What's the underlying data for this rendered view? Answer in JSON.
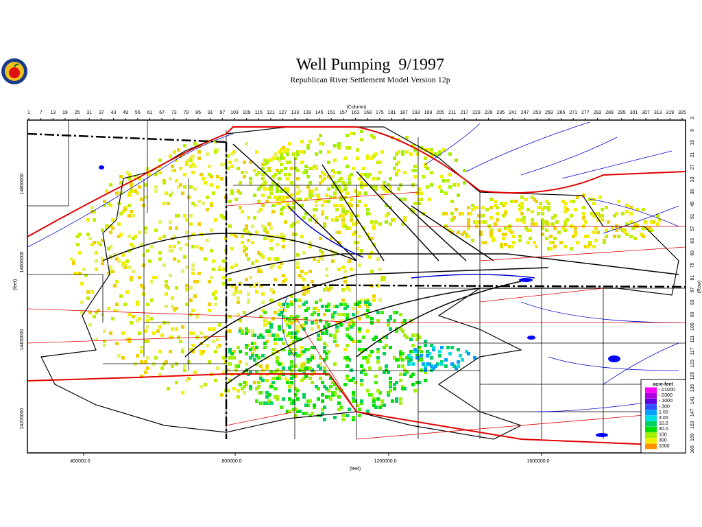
{
  "header": {
    "title": "Well Pumping  9/1997",
    "subtitle": "Republican River Settlement Model Version 12p"
  },
  "axes": {
    "column_label": "(Column)",
    "column_ticks": [
      1,
      7,
      13,
      19,
      25,
      31,
      37,
      43,
      49,
      55,
      61,
      67,
      73,
      79,
      85,
      91,
      97,
      103,
      109,
      115,
      121,
      127,
      133,
      139,
      145,
      151,
      157,
      163,
      169,
      175,
      181,
      187,
      193,
      199,
      205,
      211,
      217,
      223,
      229,
      235,
      241,
      247,
      253,
      259,
      265,
      271,
      277,
      283,
      289,
      295,
      301,
      307,
      313,
      319,
      325
    ],
    "row_label": "(Row)",
    "row_ticks": [
      3,
      9,
      15,
      21,
      27,
      33,
      39,
      45,
      51,
      57,
      63,
      69,
      75,
      81,
      87,
      93,
      99,
      105,
      111,
      117,
      123,
      129,
      135,
      141,
      147,
      153,
      159,
      165
    ],
    "x_label": "(feet)",
    "x_ticks": [
      "400000.0",
      "800000.0",
      "1200000.0",
      "1600000.0"
    ],
    "y_label": "(feet)",
    "y_ticks": [
      "14800000",
      "14600000",
      "14400000",
      "14200000"
    ]
  },
  "legend": {
    "title": "acre-feet",
    "items": [
      {
        "label": "-.01000",
        "color": "#ff00ff"
      },
      {
        "label": "-.0300",
        "color": "#b000e0"
      },
      {
        "label": "-.1000",
        "color": "#6000e0"
      },
      {
        "label": "-.300",
        "color": "#3050ff"
      },
      {
        "label": "1.00",
        "color": "#00a0ff"
      },
      {
        "label": "3.00",
        "color": "#00e0e0"
      },
      {
        "label": "10.0",
        "color": "#00d060"
      },
      {
        "label": "30.0",
        "color": "#00e000"
      },
      {
        "label": "100",
        "color": "#a0f000"
      },
      {
        "label": "300",
        "color": "#f0f000"
      },
      {
        "label": "1000",
        "color": "#ff9000"
      }
    ]
  }
}
